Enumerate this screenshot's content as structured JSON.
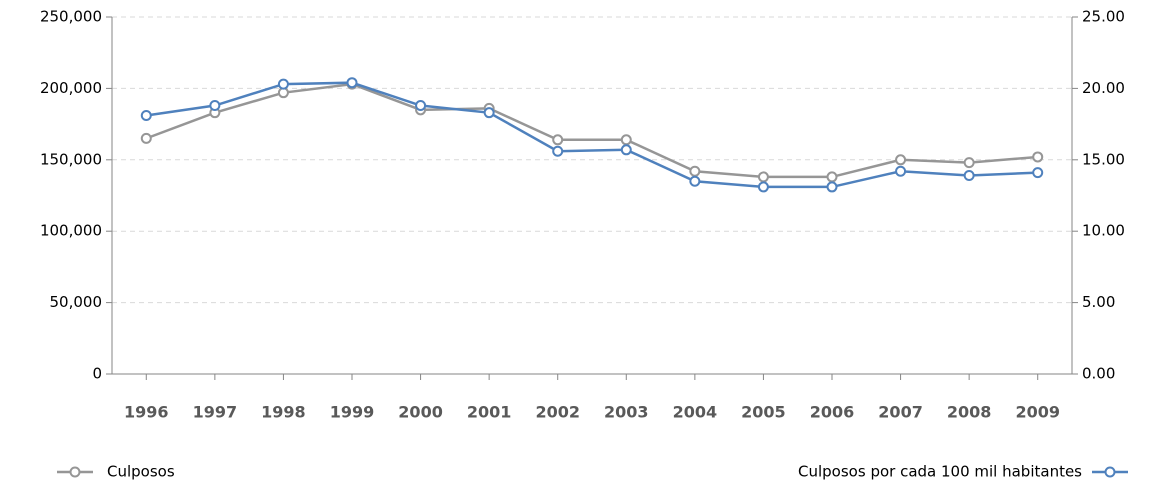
{
  "chart_data": {
    "type": "line",
    "categories": [
      "1996",
      "1997",
      "1998",
      "1999",
      "2000",
      "2001",
      "2002",
      "2003",
      "2004",
      "2005",
      "2006",
      "2007",
      "2008",
      "2009"
    ],
    "series": [
      {
        "name": "Culposos",
        "color": "#969696",
        "axis": "y",
        "values": [
          165000,
          183000,
          197000,
          203000,
          185000,
          186000,
          164000,
          164000,
          142000,
          138000,
          138000,
          150000,
          148000,
          152000
        ]
      },
      {
        "name": "Culposos por cada 100 mil habitantes",
        "color": "#4f81bd",
        "axis": "y2",
        "values": [
          18.1,
          18.8,
          20.3,
          20.4,
          18.8,
          18.3,
          15.6,
          15.7,
          13.5,
          13.1,
          13.1,
          14.2,
          13.9,
          14.1
        ]
      }
    ],
    "ylim": [
      0,
      250000
    ],
    "yticks": [
      0,
      {
        "value": 50000,
        "label": "50,000"
      },
      {
        "value": 100000,
        "label": "100,000"
      },
      {
        "value": 150000,
        "label": "150,000"
      },
      {
        "value": 200000,
        "label": "200,000"
      },
      {
        "value": 250000,
        "label": "250,000"
      }
    ],
    "y2lim": [
      0,
      25
    ],
    "y2ticks": [
      {
        "value": 0,
        "label": "0.00"
      },
      {
        "value": 5,
        "label": "5.00"
      },
      {
        "value": 10,
        "label": "10.00"
      },
      {
        "value": 15,
        "label": "15.00"
      },
      {
        "value": 20,
        "label": "20.00"
      },
      {
        "value": 25,
        "label": "25.00"
      }
    ],
    "grid": true
  }
}
